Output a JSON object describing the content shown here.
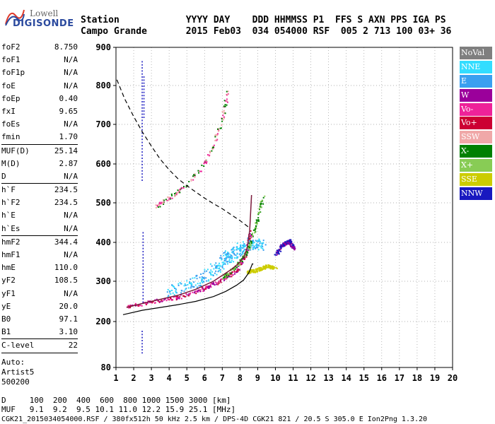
{
  "logo": {
    "line1": "Lowell",
    "line2": "DIGISONDE"
  },
  "header": {
    "labels": "Station            YYYY DAY    DDD HHMMSS P1  FFS S AXN PPS IGA PS",
    "values": "Campo Grande       2015 Feb03  034 054000 RSF  005 2 713 100 03+ 36"
  },
  "params": {
    "groups": [
      [
        [
          "foF2",
          "8.750"
        ],
        [
          "foF1",
          "N/A"
        ],
        [
          "foF1p",
          "N/A"
        ],
        [
          "foE",
          "N/A"
        ],
        [
          "foEp",
          "0.40"
        ],
        [
          "fxI",
          "9.65"
        ],
        [
          "foEs",
          "N/A"
        ],
        [
          "fmin",
          "1.70"
        ]
      ],
      [
        [
          "MUF(D)",
          "25.14"
        ],
        [
          "M(D)",
          "2.87"
        ],
        [
          "D",
          "N/A"
        ]
      ],
      [
        [
          "h`F",
          "234.5"
        ],
        [
          "h`F2",
          "234.5"
        ],
        [
          "h`E",
          "N/A"
        ],
        [
          "h`Es",
          "N/A"
        ]
      ],
      [
        [
          "hmF2",
          "344.4"
        ],
        [
          "hmF1",
          "N/A"
        ],
        [
          "hmE",
          "110.0"
        ],
        [
          "yF2",
          "108.5"
        ],
        [
          "yF1",
          "N/A"
        ],
        [
          "yE",
          "20.0"
        ],
        [
          "B0",
          "97.1"
        ],
        [
          "B1",
          "3.10"
        ]
      ],
      [
        [
          "C-level",
          "22"
        ]
      ]
    ],
    "auto_label": "Auto:",
    "artist": "Artist5",
    "artist_id": "500200"
  },
  "legend": [
    {
      "label": "NoVal",
      "color": "#7f7f7f"
    },
    {
      "label": "NNE",
      "color": "#33ddff"
    },
    {
      "label": "E",
      "color": "#3aa0f0"
    },
    {
      "label": "W",
      "color": "#9b009b"
    },
    {
      "label": "Vo-",
      "color": "#ee2299"
    },
    {
      "label": "Vo+",
      "color": "#cc0033"
    },
    {
      "label": "SSW",
      "color": "#f0a8a8"
    },
    {
      "label": "X-",
      "color": "#008000"
    },
    {
      "label": "X+",
      "color": "#88cc55"
    },
    {
      "label": "SSE",
      "color": "#cccc00"
    },
    {
      "label": "NNW",
      "color": "#1818c0"
    }
  ],
  "footer": {
    "line1": "D     100  200  400  600  800 1000 1500 3000 [km]",
    "line2": "MUF   9.1  9.2  9.5 10.1 11.0 12.2 15.9 25.1 [MHz]",
    "line3": "CGK21_2015034054000.RSF / 380fx512h 50 kHz 2.5 km / DPS-4D CGK21 821 / 20.5 S 305.0 E Ion2Png 1.3.20"
  },
  "chart_data": {
    "type": "scatter",
    "x_ticks": [
      1,
      2,
      3,
      4,
      5,
      6,
      7,
      8,
      9,
      10,
      11,
      12,
      13,
      14,
      15,
      16,
      17,
      18,
      19,
      20
    ],
    "y_ticks": [
      80,
      200,
      300,
      400,
      500,
      600,
      700,
      800,
      900
    ],
    "xlim": [
      1,
      20
    ],
    "ylim": [
      80,
      900
    ],
    "y_scale": "nonlinear",
    "grid": "dotted",
    "curves": {
      "profile_dashed": {
        "style": "dashed",
        "x": [
          1.05,
          1.5,
          2.0,
          2.5,
          3.0,
          3.5,
          4.0,
          4.5,
          5.0,
          5.5,
          6.0,
          6.5,
          7.0,
          7.5,
          8.0,
          8.5
        ],
        "y": [
          815,
          765,
          720,
          680,
          645,
          612,
          585,
          562,
          544,
          528,
          512,
          498,
          485,
          470,
          455,
          438
        ]
      },
      "o_trace": {
        "style": "solid",
        "color": "#000000",
        "x": [
          1.6,
          2.5,
          3.5,
          4.5,
          5.5,
          6.5,
          7.0,
          7.5,
          7.9,
          8.2,
          8.4,
          8.55,
          8.65
        ],
        "y": [
          235,
          245,
          255,
          265,
          280,
          300,
          315,
          330,
          345,
          360,
          385,
          430,
          520
        ]
      },
      "true_height": {
        "style": "solid",
        "color": "#000000",
        "x": [
          1.4,
          2.5,
          3.5,
          4.5,
          5.5,
          6.5,
          7.2,
          7.8,
          8.2,
          8.5,
          8.7,
          8.75
        ],
        "y": [
          217,
          228,
          235,
          242,
          250,
          262,
          275,
          290,
          303,
          322,
          345,
          344
        ]
      }
    },
    "clusters": [
      {
        "name": "o_main",
        "colors": [
          "#ee2299",
          "#cc0033",
          "#9b009b"
        ],
        "x": [
          1.6,
          3.0,
          4.5,
          5.8,
          7.0,
          7.8,
          8.3,
          8.6
        ],
        "y": [
          238,
          250,
          262,
          280,
          305,
          330,
          370,
          430
        ]
      },
      {
        "name": "o_spread",
        "colors": [
          "#33ddff",
          "#3aa0f0"
        ],
        "x": [
          4.0,
          5.5,
          6.5,
          7.2,
          7.8,
          8.6,
          9.2
        ],
        "y": [
          275,
          300,
          330,
          360,
          380,
          400,
          395
        ]
      },
      {
        "name": "x_trace",
        "colors": [
          "#008000",
          "#88cc55"
        ],
        "x": [
          7.0,
          7.8,
          8.4,
          8.9,
          9.3
        ],
        "y": [
          310,
          340,
          380,
          450,
          520
        ]
      },
      {
        "name": "upper_echo",
        "colors": [
          "#ee2299",
          "#008000",
          "#f0a8a8"
        ],
        "x": [
          3.2,
          4.2,
          5.0,
          5.8,
          6.5,
          7.0,
          7.3
        ],
        "y": [
          490,
          520,
          550,
          590,
          650,
          720,
          790
        ]
      },
      {
        "name": "sse_group",
        "colors": [
          "#cccc00"
        ],
        "x": [
          8.4,
          8.9,
          9.5,
          10.0
        ],
        "y": [
          325,
          330,
          340,
          335
        ]
      },
      {
        "name": "nnw_group",
        "colors": [
          "#1818c0",
          "#9b009b"
        ],
        "x": [
          10.0,
          10.4,
          10.8,
          11.0
        ],
        "y": [
          370,
          395,
          405,
          385
        ]
      }
    ]
  }
}
